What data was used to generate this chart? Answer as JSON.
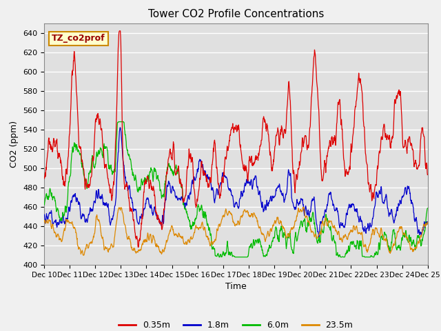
{
  "title": "Tower CO2 Profile Concentrations",
  "xlabel": "Time",
  "ylabel": "CO2 (ppm)",
  "ylim": [
    400,
    650
  ],
  "yticks": [
    400,
    420,
    440,
    460,
    480,
    500,
    520,
    540,
    560,
    580,
    600,
    620,
    640
  ],
  "legend_labels": [
    "0.35m",
    "1.8m",
    "6.0m",
    "23.5m"
  ],
  "line_colors": [
    "#dd0000",
    "#0000cc",
    "#00bb00",
    "#dd8800"
  ],
  "annotation_text": "TZ_co2prof",
  "n_points": 1440,
  "xtick_labels": [
    "Dec 10",
    "Dec 11",
    "Dec 12",
    "Dec 13",
    "Dec 14",
    "Dec 15",
    "Dec 16",
    "Dec 17",
    "Dec 18",
    "Dec 19",
    "Dec 20",
    "Dec 21",
    "Dec 22",
    "Dec 23",
    "Dec 24",
    "Dec 25"
  ],
  "xtick_positions": [
    0,
    96,
    192,
    288,
    384,
    480,
    576,
    672,
    768,
    864,
    960,
    1056,
    1152,
    1248,
    1344,
    1440
  ],
  "figsize": [
    6.4,
    4.8
  ],
  "dpi": 100
}
